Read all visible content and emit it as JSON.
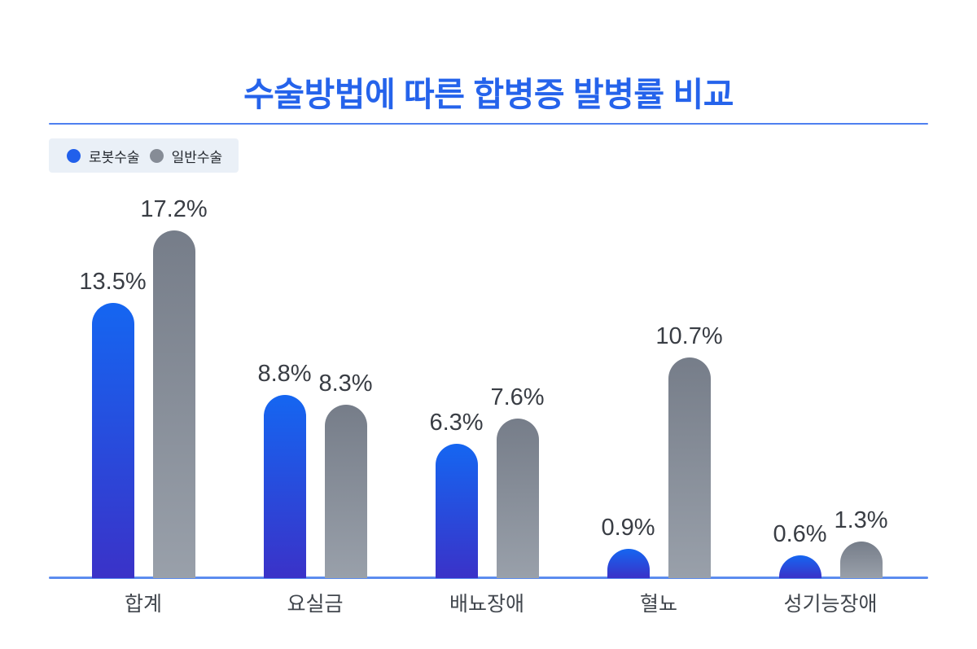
{
  "page": {
    "title_color": "#2563eb",
    "divider_color": "#4f80f0",
    "background": "#ffffff",
    "legend_background": "#eaf0f7"
  },
  "legend": {
    "items": [
      {
        "label": "로봇수술",
        "color": "#2160eb"
      },
      {
        "label": "일반수술",
        "color": "#868c96"
      }
    ]
  },
  "chart_data": {
    "type": "bar",
    "title": "수술방법에 따른 합병증 발병률 비교",
    "categories": [
      "합계",
      "요실금",
      "배뇨장애",
      "혈뇨",
      "성기능장애"
    ],
    "series": [
      {
        "name": "로봇수술",
        "values": [
          13.5,
          8.8,
          6.3,
          0.9,
          0.6
        ],
        "color_top": "#1566f1",
        "color_bottom": "#3a32c8"
      },
      {
        "name": "일반수술",
        "values": [
          17.2,
          8.3,
          7.6,
          10.7,
          1.3
        ],
        "color_top": "#767d89",
        "color_bottom": "#99a0aa"
      }
    ],
    "value_labels": [
      "13.5%",
      "17.2%",
      "8.8%",
      "8.3%",
      "6.3%",
      "7.6%",
      "0.9%",
      "10.7%",
      "0.6%",
      "1.3%"
    ],
    "value_suffix": "%",
    "xlabel": "",
    "ylabel": "",
    "ylim": [
      0,
      18
    ],
    "grid": false,
    "legend_position": "top-left",
    "axis_line_color": "#5c8cef",
    "value_label_position": "above-bar"
  }
}
